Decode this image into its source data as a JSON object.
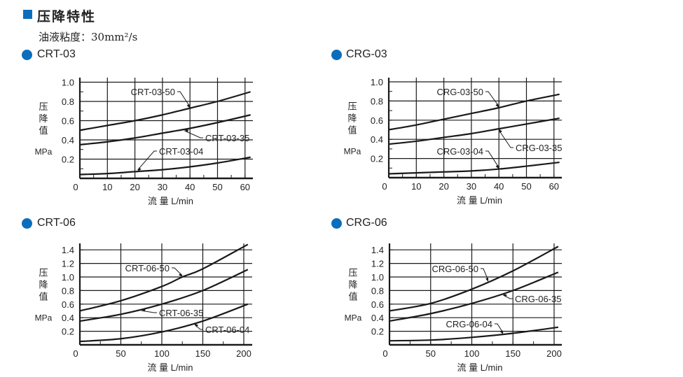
{
  "header": {
    "title": "压降特性",
    "viscosity": "油液粘度：30mm²/s"
  },
  "colors": {
    "accent": "#0a6ebd",
    "line": "#1a1a1a"
  },
  "chart_data": [
    {
      "type": "line",
      "title": "CRT-03",
      "ylabel": [
        "压",
        "降",
        "值",
        "MPa"
      ],
      "xlabel": "流 量   L/min",
      "xlim": [
        0,
        63
      ],
      "ylim": [
        0,
        1.0
      ],
      "xticks": [
        0,
        10,
        20,
        30,
        40,
        50,
        60
      ],
      "xtick_labels": [
        "0",
        "10",
        "20",
        "30",
        "40",
        "50",
        "60"
      ],
      "yticks": [
        0.2,
        0.4,
        0.6,
        0.8,
        1.0
      ],
      "ytick_labels": [
        "0.2",
        "0.4",
        "0.6",
        "0.8",
        "1.0"
      ],
      "grid": true,
      "series": [
        {
          "name": "CRT-03-50",
          "x": [
            0,
            10,
            20,
            30,
            40,
            50,
            62
          ],
          "y": [
            0.5,
            0.55,
            0.6,
            0.66,
            0.73,
            0.8,
            0.9
          ]
        },
        {
          "name": "CRT-03-35",
          "x": [
            0,
            10,
            20,
            30,
            40,
            50,
            62
          ],
          "y": [
            0.35,
            0.38,
            0.42,
            0.47,
            0.52,
            0.58,
            0.66
          ]
        },
        {
          "name": "CRT-03-04",
          "x": [
            0,
            10,
            20,
            30,
            40,
            50,
            62
          ],
          "y": [
            0.04,
            0.05,
            0.07,
            0.09,
            0.12,
            0.16,
            0.22
          ]
        }
      ]
    },
    {
      "type": "line",
      "title": "CRG-03",
      "ylabel": [
        "压",
        "降",
        "值",
        "MPa"
      ],
      "xlabel": "流 量   L/min",
      "xlim": [
        0,
        63
      ],
      "ylim": [
        0,
        1.0
      ],
      "xticks": [
        0,
        10,
        20,
        30,
        40,
        50,
        60
      ],
      "xtick_labels": [
        "0",
        "10",
        "20",
        "30",
        "40",
        "50",
        "60"
      ],
      "yticks": [
        0.2,
        0.4,
        0.6,
        0.8,
        1.0
      ],
      "ytick_labels": [
        "0.2",
        "0.4",
        "0.6",
        "0.8",
        "1.0"
      ],
      "grid": true,
      "series": [
        {
          "name": "CRG-03-50",
          "x": [
            0,
            10,
            20,
            30,
            40,
            50,
            62
          ],
          "y": [
            0.5,
            0.55,
            0.61,
            0.67,
            0.73,
            0.8,
            0.87
          ]
        },
        {
          "name": "CRG-03-35",
          "x": [
            0,
            10,
            20,
            30,
            40,
            50,
            62
          ],
          "y": [
            0.35,
            0.38,
            0.42,
            0.46,
            0.51,
            0.56,
            0.62
          ]
        },
        {
          "name": "CRG-03-04",
          "x": [
            0,
            10,
            20,
            30,
            40,
            50,
            62
          ],
          "y": [
            0.04,
            0.05,
            0.06,
            0.07,
            0.09,
            0.12,
            0.16
          ]
        }
      ]
    },
    {
      "type": "line",
      "title": "CRT-06",
      "ylabel": [
        "压",
        "降",
        "值",
        "MPa"
      ],
      "xlabel": "流 量   L/min",
      "xlim": [
        0,
        210
      ],
      "ylim": [
        0,
        1.5
      ],
      "xticks": [
        0,
        50,
        100,
        150,
        200
      ],
      "xtick_labels": [
        "0",
        "50",
        "100",
        "150",
        "200"
      ],
      "yticks": [
        0.2,
        0.4,
        0.6,
        0.8,
        1.0,
        1.2,
        1.4
      ],
      "ytick_labels": [
        "0.2",
        "0.4",
        "0.6",
        "0.8",
        "1.0",
        "1.2",
        "1.4"
      ],
      "grid": true,
      "series": [
        {
          "name": "CRT-06-50",
          "x": [
            0,
            50,
            100,
            125,
            150,
            205
          ],
          "y": [
            0.5,
            0.65,
            0.86,
            1.0,
            1.12,
            1.48
          ]
        },
        {
          "name": "CRT-06-35",
          "x": [
            0,
            50,
            100,
            150,
            205
          ],
          "y": [
            0.35,
            0.45,
            0.6,
            0.8,
            1.11
          ]
        },
        {
          "name": "CRT-06-04",
          "x": [
            0,
            50,
            100,
            150,
            205
          ],
          "y": [
            0.05,
            0.09,
            0.19,
            0.35,
            0.6
          ]
        }
      ]
    },
    {
      "type": "line",
      "title": "CRG-06",
      "ylabel": [
        "压",
        "降",
        "值",
        "MPa"
      ],
      "xlabel": "流 量   L/min",
      "xlim": [
        0,
        210
      ],
      "ylim": [
        0,
        1.5
      ],
      "xticks": [
        0,
        50,
        100,
        150,
        200
      ],
      "xtick_labels": [
        "0",
        "50",
        "100",
        "150",
        "200"
      ],
      "yticks": [
        0.2,
        0.4,
        0.6,
        0.8,
        1.0,
        1.2,
        1.4
      ],
      "ytick_labels": [
        "0.2",
        "0.4",
        "0.6",
        "0.8",
        "1.0",
        "1.2",
        "1.4"
      ],
      "grid": true,
      "series": [
        {
          "name": "CRG-06-50",
          "x": [
            0,
            50,
            100,
            150,
            205
          ],
          "y": [
            0.5,
            0.61,
            0.82,
            1.09,
            1.45
          ]
        },
        {
          "name": "CRG-06-35",
          "x": [
            0,
            50,
            100,
            150,
            205
          ],
          "y": [
            0.35,
            0.46,
            0.61,
            0.8,
            1.07
          ]
        },
        {
          "name": "CRG-06-04",
          "x": [
            0,
            50,
            100,
            150,
            205
          ],
          "y": [
            0.06,
            0.07,
            0.11,
            0.17,
            0.26
          ]
        }
      ]
    }
  ]
}
